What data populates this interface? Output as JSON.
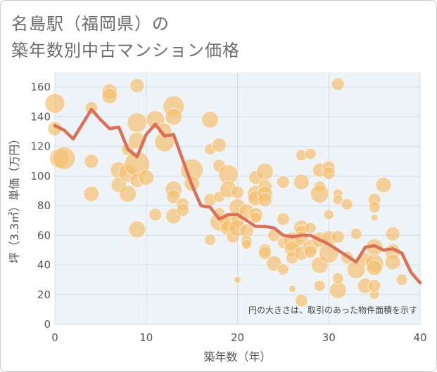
{
  "title_line1": "名島駅（福岡県）の",
  "title_line2": "築年数別中古マンション価格",
  "chart_data": {
    "type": "scatter",
    "xlabel": "築年数（年）",
    "ylabel": "坪（3.3㎡）単価（万円）",
    "xlim": [
      0,
      40
    ],
    "ylim": [
      0,
      170
    ],
    "xticks": [
      0,
      10,
      20,
      30,
      40
    ],
    "yticks": [
      0,
      20,
      40,
      60,
      80,
      100,
      120,
      140,
      160
    ],
    "grid": true,
    "annotation": "円の大きさは、取引のあった物件面積を示す",
    "colors": {
      "bubble": "#f5c06f",
      "line": "#d9705a",
      "grid": "#d3dee8",
      "plot_bg": "#eef3f8"
    },
    "bubbles": [
      {
        "x": 0,
        "y": 149,
        "s": 14
      },
      {
        "x": 0,
        "y": 132,
        "s": 10
      },
      {
        "x": 0.5,
        "y": 112,
        "s": 14
      },
      {
        "x": 1,
        "y": 112,
        "s": 16
      },
      {
        "x": 4,
        "y": 146,
        "s": 9
      },
      {
        "x": 4,
        "y": 110,
        "s": 10
      },
      {
        "x": 4,
        "y": 88,
        "s": 11
      },
      {
        "x": 6,
        "y": 157,
        "s": 11
      },
      {
        "x": 6,
        "y": 154,
        "s": 11
      },
      {
        "x": 7,
        "y": 104,
        "s": 12
      },
      {
        "x": 7,
        "y": 94,
        "s": 11
      },
      {
        "x": 8,
        "y": 118,
        "s": 9
      },
      {
        "x": 8,
        "y": 102,
        "s": 13
      },
      {
        "x": 8,
        "y": 88,
        "s": 12
      },
      {
        "x": 9,
        "y": 161,
        "s": 10
      },
      {
        "x": 9,
        "y": 136,
        "s": 14
      },
      {
        "x": 9,
        "y": 124,
        "s": 12
      },
      {
        "x": 9,
        "y": 108,
        "s": 18
      },
      {
        "x": 9,
        "y": 97,
        "s": 10
      },
      {
        "x": 9,
        "y": 64,
        "s": 12
      },
      {
        "x": 10,
        "y": 99,
        "s": 11
      },
      {
        "x": 11,
        "y": 138,
        "s": 13
      },
      {
        "x": 11,
        "y": 74,
        "s": 9
      },
      {
        "x": 12,
        "y": 123,
        "s": 14
      },
      {
        "x": 12,
        "y": 131,
        "s": 10
      },
      {
        "x": 13,
        "y": 147,
        "s": 15
      },
      {
        "x": 13,
        "y": 140,
        "s": 12
      },
      {
        "x": 13,
        "y": 91,
        "s": 12
      },
      {
        "x": 13,
        "y": 86,
        "s": 10
      },
      {
        "x": 13,
        "y": 73,
        "s": 11
      },
      {
        "x": 14,
        "y": 81,
        "s": 9
      },
      {
        "x": 14,
        "y": 77,
        "s": 9
      },
      {
        "x": 15,
        "y": 104,
        "s": 16
      },
      {
        "x": 15,
        "y": 95,
        "s": 11
      },
      {
        "x": 17,
        "y": 138,
        "s": 12
      },
      {
        "x": 17,
        "y": 118,
        "s": 8
      },
      {
        "x": 17,
        "y": 84,
        "s": 9
      },
      {
        "x": 17,
        "y": 57,
        "s": 8
      },
      {
        "x": 18,
        "y": 121,
        "s": 10
      },
      {
        "x": 18,
        "y": 107,
        "s": 9
      },
      {
        "x": 18,
        "y": 86,
        "s": 8
      },
      {
        "x": 18,
        "y": 75,
        "s": 8
      },
      {
        "x": 18,
        "y": 69,
        "s": 13
      },
      {
        "x": 19,
        "y": 101,
        "s": 14
      },
      {
        "x": 19,
        "y": 91,
        "s": 12
      },
      {
        "x": 19,
        "y": 69,
        "s": 13
      },
      {
        "x": 19,
        "y": 65,
        "s": 11
      },
      {
        "x": 19.5,
        "y": 59,
        "s": 9
      },
      {
        "x": 20,
        "y": 89,
        "s": 9
      },
      {
        "x": 20,
        "y": 79,
        "s": 12
      },
      {
        "x": 20,
        "y": 70,
        "s": 9
      },
      {
        "x": 20,
        "y": 65,
        "s": 12
      },
      {
        "x": 20,
        "y": 30,
        "s": 5
      },
      {
        "x": 21,
        "y": 76,
        "s": 11
      },
      {
        "x": 21,
        "y": 63,
        "s": 10
      },
      {
        "x": 21,
        "y": 56,
        "s": 8
      },
      {
        "x": 21,
        "y": 54,
        "s": 7
      },
      {
        "x": 22,
        "y": 99,
        "s": 10
      },
      {
        "x": 22,
        "y": 88,
        "s": 12
      },
      {
        "x": 22,
        "y": 85,
        "s": 11
      },
      {
        "x": 22,
        "y": 74,
        "s": 10
      },
      {
        "x": 22,
        "y": 72,
        "s": 8
      },
      {
        "x": 23,
        "y": 103,
        "s": 12
      },
      {
        "x": 23,
        "y": 93,
        "s": 10
      },
      {
        "x": 23,
        "y": 88,
        "s": 11
      },
      {
        "x": 23,
        "y": 84,
        "s": 10
      },
      {
        "x": 23,
        "y": 50,
        "s": 9
      },
      {
        "x": 23,
        "y": 48,
        "s": 9
      },
      {
        "x": 24,
        "y": 60,
        "s": 9
      },
      {
        "x": 24,
        "y": 41,
        "s": 11
      },
      {
        "x": 25,
        "y": 96,
        "s": 9
      },
      {
        "x": 25,
        "y": 71,
        "s": 9
      },
      {
        "x": 25,
        "y": 55,
        "s": 8
      },
      {
        "x": 25,
        "y": 37,
        "s": 8
      },
      {
        "x": 26,
        "y": 56,
        "s": 13
      },
      {
        "x": 26,
        "y": 51,
        "s": 11
      },
      {
        "x": 26,
        "y": 45,
        "s": 9
      },
      {
        "x": 26,
        "y": 24,
        "s": 5
      },
      {
        "x": 27,
        "y": 114,
        "s": 8
      },
      {
        "x": 27,
        "y": 96,
        "s": 11
      },
      {
        "x": 27,
        "y": 65,
        "s": 11
      },
      {
        "x": 27,
        "y": 63,
        "s": 8
      },
      {
        "x": 27,
        "y": 58,
        "s": 10
      },
      {
        "x": 27,
        "y": 48,
        "s": 10
      },
      {
        "x": 27,
        "y": 16,
        "s": 9
      },
      {
        "x": 28,
        "y": 115,
        "s": 8
      },
      {
        "x": 28,
        "y": 65,
        "s": 8
      },
      {
        "x": 28,
        "y": 52,
        "s": 11
      },
      {
        "x": 28,
        "y": 49,
        "s": 9
      },
      {
        "x": 29,
        "y": 104,
        "s": 10
      },
      {
        "x": 29,
        "y": 93,
        "s": 8
      },
      {
        "x": 29,
        "y": 88,
        "s": 13
      },
      {
        "x": 29,
        "y": 57,
        "s": 11
      },
      {
        "x": 29,
        "y": 40,
        "s": 12
      },
      {
        "x": 29,
        "y": 26,
        "s": 8
      },
      {
        "x": 30,
        "y": 106,
        "s": 9
      },
      {
        "x": 30,
        "y": 102,
        "s": 9
      },
      {
        "x": 30,
        "y": 74,
        "s": 7
      },
      {
        "x": 30,
        "y": 58,
        "s": 11
      },
      {
        "x": 30,
        "y": 48,
        "s": 14
      },
      {
        "x": 31,
        "y": 162,
        "s": 9
      },
      {
        "x": 31,
        "y": 88,
        "s": 7
      },
      {
        "x": 31,
        "y": 84,
        "s": 7
      },
      {
        "x": 31,
        "y": 59,
        "s": 9
      },
      {
        "x": 31,
        "y": 23,
        "s": 12
      },
      {
        "x": 31,
        "y": 31,
        "s": 8
      },
      {
        "x": 32,
        "y": 81,
        "s": 8
      },
      {
        "x": 32,
        "y": 45,
        "s": 9
      },
      {
        "x": 33,
        "y": 61,
        "s": 8
      },
      {
        "x": 33,
        "y": 37,
        "s": 13
      },
      {
        "x": 34,
        "y": 44,
        "s": 9
      },
      {
        "x": 34,
        "y": 26,
        "s": 11
      },
      {
        "x": 35,
        "y": 84,
        "s": 9
      },
      {
        "x": 35,
        "y": 79,
        "s": 8
      },
      {
        "x": 35,
        "y": 72,
        "s": 5
      },
      {
        "x": 35,
        "y": 52,
        "s": 12
      },
      {
        "x": 35,
        "y": 41,
        "s": 13
      },
      {
        "x": 35,
        "y": 38,
        "s": 11
      },
      {
        "x": 35,
        "y": 20,
        "s": 7
      },
      {
        "x": 35,
        "y": 26,
        "s": 9
      },
      {
        "x": 36,
        "y": 94,
        "s": 11
      },
      {
        "x": 37,
        "y": 61,
        "s": 10
      },
      {
        "x": 37,
        "y": 49,
        "s": 11
      },
      {
        "x": 37,
        "y": 42,
        "s": 11
      },
      {
        "x": 38,
        "y": 30,
        "s": 8
      }
    ],
    "trend": {
      "x": [
        0,
        1,
        2,
        3,
        4,
        5,
        6,
        7,
        8,
        9,
        10,
        11,
        12,
        13,
        14,
        15,
        16,
        17,
        18,
        19,
        20,
        21,
        22,
        23,
        24,
        25,
        26,
        27,
        28,
        29,
        30,
        31,
        32,
        33,
        34,
        35,
        36,
        37,
        38,
        39,
        40
      ],
      "y": [
        134,
        131,
        125,
        135,
        145,
        138,
        132,
        133,
        118,
        113,
        128,
        135,
        127,
        128,
        111,
        94,
        80,
        79,
        71,
        74,
        74,
        70,
        66,
        66,
        65,
        60,
        59,
        60,
        60,
        57,
        54,
        50,
        46,
        42,
        52,
        53,
        50,
        51,
        48,
        35,
        28
      ]
    }
  }
}
